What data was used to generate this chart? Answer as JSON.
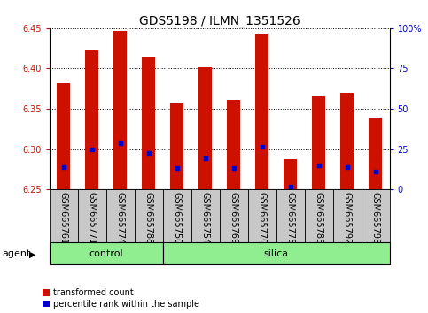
{
  "title": "GDS5198 / ILMN_1351526",
  "samples": [
    "GSM665761",
    "GSM665771",
    "GSM665774",
    "GSM665788",
    "GSM665750",
    "GSM665754",
    "GSM665769",
    "GSM665770",
    "GSM665775",
    "GSM665785",
    "GSM665792",
    "GSM665793"
  ],
  "bar_tops": [
    6.382,
    6.422,
    6.447,
    6.415,
    6.358,
    6.402,
    6.361,
    6.443,
    6.287,
    6.365,
    6.37,
    6.339
  ],
  "blue_vals": [
    6.278,
    6.3,
    6.307,
    6.295,
    6.276,
    6.289,
    6.276,
    6.303,
    6.254,
    6.28,
    6.278,
    6.272
  ],
  "bar_base": 6.25,
  "ylim_left": [
    6.25,
    6.45
  ],
  "ylim_right": [
    0,
    100
  ],
  "yticks_left": [
    6.25,
    6.3,
    6.35,
    6.4,
    6.45
  ],
  "yticks_right": [
    0,
    25,
    50,
    75,
    100
  ],
  "ytick_labels_right": [
    "0",
    "25",
    "50",
    "75",
    "100%"
  ],
  "bar_color": "#cc1100",
  "blue_color": "#0000cc",
  "grid_color": "#000000",
  "control_samples": 4,
  "silica_samples": 8,
  "control_label": "control",
  "silica_label": "silica",
  "agent_label": "agent",
  "legend_red": "transformed count",
  "legend_blue": "percentile rank within the sample",
  "left_tick_color": "#cc1100",
  "right_tick_color": "#0000cc",
  "bar_width": 0.45,
  "group_box_color": "#90ee90",
  "tick_box_color": "#c8c8c8",
  "title_fontsize": 10,
  "tick_fontsize": 7,
  "label_fontsize": 8,
  "legend_fontsize": 7
}
